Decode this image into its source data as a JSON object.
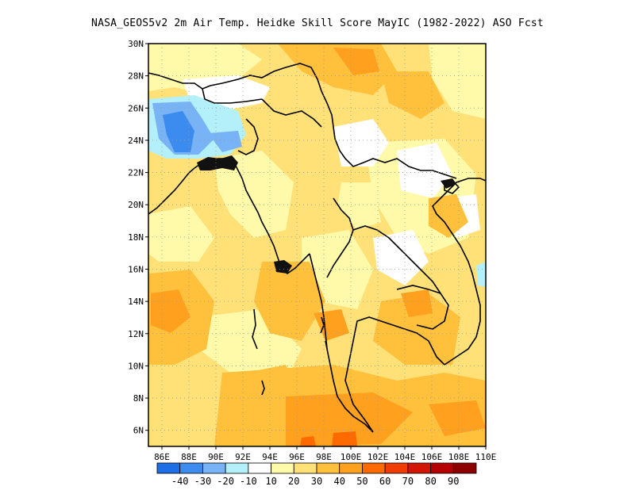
{
  "title": "NASA_GEOS5v2 2m Air Temp. Heidke Skill Score MayIC (1982-2022) ASO Fcst",
  "map": {
    "lon_range": [
      85,
      110
    ],
    "lat_range": [
      5,
      30
    ],
    "lon_ticks": [
      "86E",
      "88E",
      "90E",
      "92E",
      "94E",
      "96E",
      "98E",
      "100E",
      "102E",
      "104E",
      "106E",
      "108E",
      "110E"
    ],
    "lat_ticks": [
      "6N",
      "8N",
      "10N",
      "12N",
      "14N",
      "16N",
      "18N",
      "20N",
      "22N",
      "24N",
      "26N",
      "28N",
      "30N"
    ],
    "grid": "dotted"
  },
  "colorbar": {
    "labels": [
      "-40",
      "-30",
      "-20",
      "-10",
      "10",
      "20",
      "30",
      "40",
      "50",
      "60",
      "70",
      "80",
      "90"
    ],
    "colors": [
      "#1e6fe6",
      "#3c8cf0",
      "#78b4f5",
      "#b4f0fa",
      "#ffffff",
      "#fffaaa",
      "#ffe178",
      "#ffc03c",
      "#ffa01e",
      "#ff6a00",
      "#f03c00",
      "#d21400",
      "#b40000",
      "#8c0000"
    ]
  }
}
